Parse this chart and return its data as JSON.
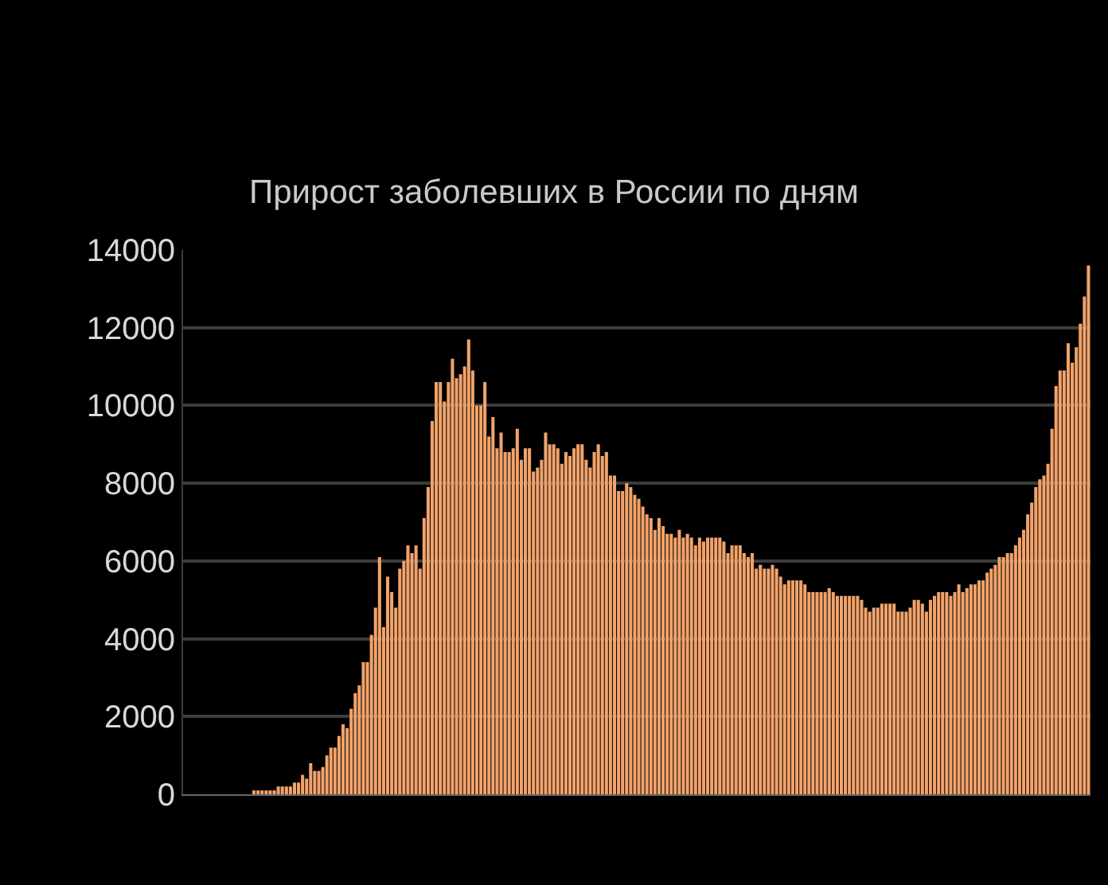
{
  "chart_data": {
    "type": "bar",
    "title": "Прирост заболевших в России по дням",
    "categories": [
      null,
      null,
      null,
      null,
      null,
      null,
      null,
      null,
      null,
      null,
      null,
      null,
      null,
      null,
      null,
      null,
      null,
      null,
      null,
      null,
      null,
      null,
      null,
      null,
      null,
      null,
      null,
      null,
      null,
      null,
      null,
      null,
      null,
      null,
      null,
      null,
      null,
      null,
      null,
      null,
      null,
      null,
      null,
      null,
      null,
      null,
      null,
      null,
      null,
      null,
      null,
      null,
      null,
      null,
      null,
      null,
      null,
      null,
      null,
      null,
      null,
      null,
      null,
      null,
      null,
      null,
      null,
      null,
      null,
      null,
      null,
      null,
      null,
      null,
      null,
      null,
      null,
      null,
      null,
      null,
      null,
      null,
      null,
      null,
      null,
      null,
      null,
      null,
      null,
      null,
      null,
      null,
      null,
      null,
      null,
      null,
      null,
      null,
      null,
      null,
      null,
      null,
      null,
      null,
      null,
      null,
      null,
      null,
      null,
      null,
      null,
      null,
      null,
      null,
      null,
      null,
      null,
      null,
      null,
      null,
      null,
      null,
      null,
      null,
      null,
      null,
      null,
      null,
      null,
      null,
      null,
      null,
      null,
      null,
      null,
      null,
      null,
      null,
      null,
      null,
      null,
      null,
      null,
      null,
      null,
      null,
      null,
      null,
      null,
      null,
      null,
      null,
      null,
      null,
      null,
      null,
      null,
      null,
      null,
      null,
      null,
      null,
      null,
      null,
      null,
      null,
      null,
      null,
      null,
      null,
      null,
      null,
      null,
      null,
      null,
      null,
      null,
      null,
      null,
      null,
      null,
      null,
      null,
      null,
      null,
      null,
      null,
      null,
      null,
      null,
      null,
      null,
      null,
      null,
      null,
      null,
      null,
      null,
      null,
      null,
      null,
      null,
      null,
      null,
      null,
      null,
      null,
      null,
      null,
      null,
      null,
      null,
      null,
      null,
      null,
      null,
      null,
      null,
      null,
      null,
      null,
      null,
      null,
      null
    ],
    "values": [
      0,
      0,
      0,
      0,
      0,
      0,
      0,
      0,
      0,
      0,
      0,
      0,
      0,
      0,
      0,
      0,
      0,
      100,
      100,
      100,
      100,
      100,
      100,
      200,
      200,
      200,
      200,
      300,
      300,
      500,
      400,
      800,
      600,
      600,
      700,
      1000,
      1200,
      1200,
      1500,
      1800,
      1700,
      2200,
      2600,
      2800,
      3400,
      3400,
      4100,
      4800,
      6100,
      4300,
      5600,
      5200,
      4800,
      5800,
      6000,
      6400,
      6200,
      6400,
      5800,
      7100,
      7900,
      9600,
      10600,
      10600,
      10100,
      10600,
      11200,
      10700,
      10800,
      11000,
      11700,
      10900,
      10000,
      10000,
      10600,
      9200,
      9700,
      8900,
      9300,
      8800,
      8800,
      8900,
      9400,
      8600,
      8900,
      8900,
      8300,
      8400,
      8600,
      9300,
      9000,
      9000,
      8900,
      8500,
      8800,
      8700,
      8900,
      9000,
      9000,
      8600,
      8400,
      8800,
      9000,
      8700,
      8800,
      8200,
      8200,
      7800,
      7800,
      8000,
      7900,
      7700,
      7600,
      7400,
      7200,
      7100,
      6800,
      7100,
      6900,
      6700,
      6700,
      6600,
      6800,
      6600,
      6700,
      6600,
      6400,
      6600,
      6500,
      6600,
      6600,
      6600,
      6600,
      6500,
      6200,
      6400,
      6400,
      6400,
      6200,
      6100,
      6200,
      5800,
      5900,
      5800,
      5800,
      5900,
      5800,
      5600,
      5400,
      5500,
      5500,
      5500,
      5500,
      5400,
      5200,
      5200,
      5200,
      5200,
      5200,
      5300,
      5200,
      5100,
      5100,
      5100,
      5100,
      5100,
      5100,
      5000,
      4800,
      4700,
      4800,
      4800,
      4900,
      4900,
      4900,
      4900,
      4700,
      4700,
      4700,
      4800,
      5000,
      5000,
      4900,
      4700,
      5000,
      5100,
      5200,
      5200,
      5200,
      5100,
      5200,
      5400,
      5200,
      5300,
      5400,
      5400,
      5500,
      5500,
      5700,
      5800,
      5900,
      6100,
      6100,
      6200,
      6200,
      6400,
      6600,
      6800,
      7200,
      7500,
      7900,
      8100,
      8200,
      8500,
      9400,
      10500,
      10900,
      10900,
      11600,
      11100,
      11500,
      12100,
      12800,
      13600
    ],
    "color": "#f2a36a",
    "ylim": [
      0,
      14000
    ],
    "yticks": [
      0,
      2000,
      4000,
      6000,
      8000,
      10000,
      12000,
      14000
    ],
    "grid": "y",
    "tick_labels": "y"
  }
}
